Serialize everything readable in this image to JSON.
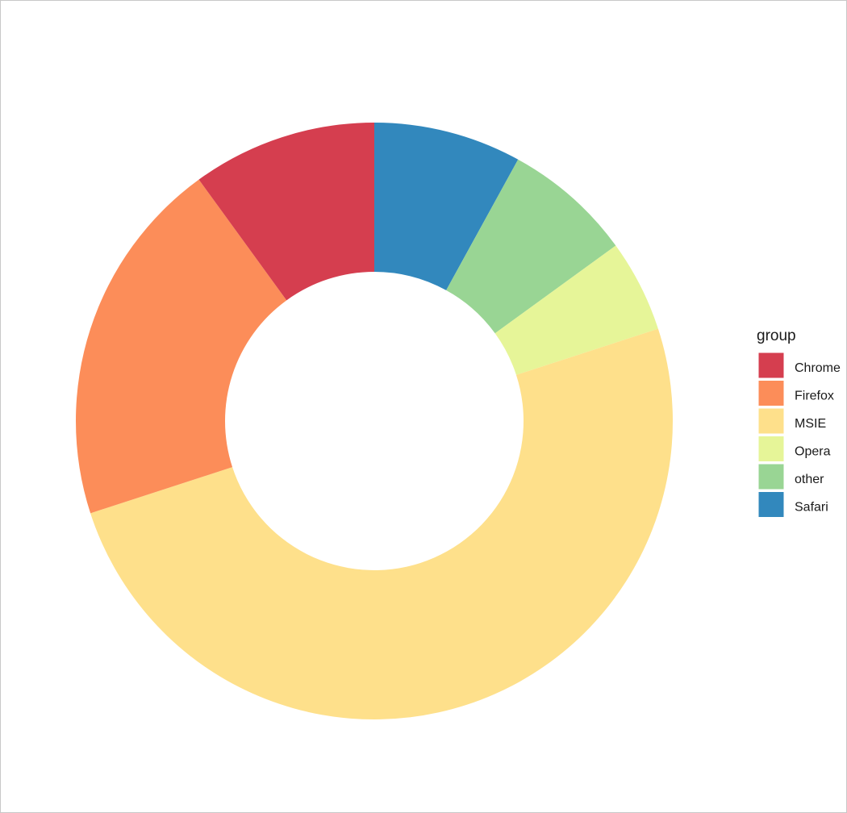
{
  "chart_data": {
    "type": "pie",
    "donut": true,
    "legend_title": "group",
    "categories": [
      "Chrome",
      "Firefox",
      "MSIE",
      "Opera",
      "other",
      "Safari"
    ],
    "values": [
      10,
      20,
      50,
      5,
      7,
      8
    ],
    "colors": [
      "#d53e4f",
      "#fc8d59",
      "#fee08b",
      "#e6f598",
      "#99d594",
      "#3288bd"
    ]
  }
}
